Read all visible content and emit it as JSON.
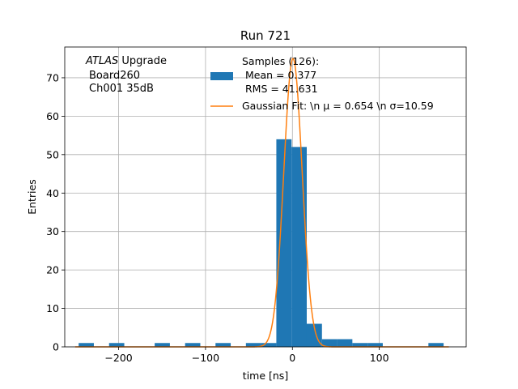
{
  "chart_data": {
    "type": "bar",
    "title": "Run 721",
    "xlabel": "time [ns]",
    "ylabel": "Entries",
    "xlim": [
      -262,
      200
    ],
    "ylim": [
      0,
      78
    ],
    "xticks": [
      -200,
      -100,
      0,
      100
    ],
    "xtick_labels": [
      "−200",
      "−100",
      "0",
      "100"
    ],
    "yticks": [
      0,
      10,
      20,
      30,
      40,
      50,
      60,
      70
    ],
    "yticks_labels": [
      "0",
      "10",
      "20",
      "30",
      "40",
      "50",
      "60",
      "70"
    ],
    "grid": true,
    "legend_position": "top-center",
    "annotation": {
      "atlas_italic": "ATLAS",
      "atlas_rest": " Upgrade",
      "line2": "Board260",
      "line3": "Ch001 35dB"
    },
    "histogram": {
      "bin_edges": [
        -246.0,
        -228.5,
        -211.0,
        -193.5,
        -176.0,
        -158.5,
        -141.0,
        -123.5,
        -106.0,
        -88.5,
        -71.0,
        -53.5,
        -36.0,
        -18.5,
        -1.0,
        16.5,
        34.0,
        51.5,
        69.0,
        86.5,
        104.0,
        121.5,
        139.0,
        156.5,
        174.0
      ],
      "counts": [
        1,
        0,
        1,
        0,
        0,
        1,
        0,
        1,
        0,
        1,
        0,
        1,
        1,
        54,
        52,
        6,
        2,
        2,
        1,
        1,
        0,
        0,
        0,
        1
      ],
      "color": "#1f77b4",
      "legend_lines": [
        "Samples (126):",
        " Mean = 0.377",
        " RMS = 41.631"
      ]
    },
    "fit": {
      "type": "gaussian",
      "mu": 0.654,
      "sigma": 10.59,
      "amplitude": 75,
      "color": "#ff7f0e",
      "legend_label": "Gaussian Fit: \\n μ = 0.654 \\n σ=10.59"
    }
  }
}
